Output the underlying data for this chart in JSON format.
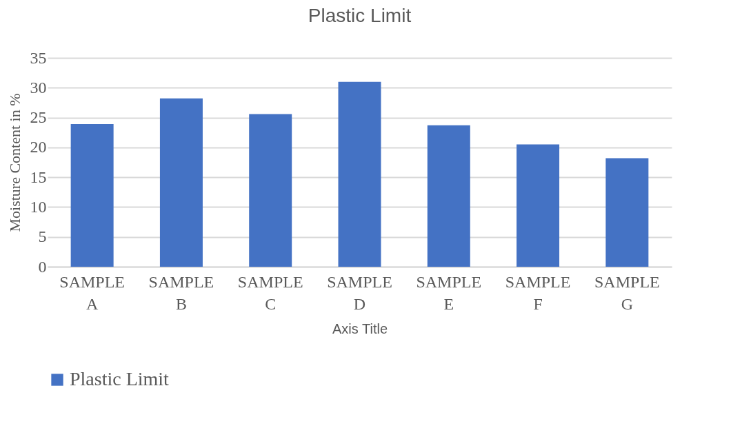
{
  "chart_data": {
    "type": "bar",
    "title": "Plastic Limit",
    "xlabel": "Axis Title",
    "ylabel": "Moisture Content in %",
    "categories": [
      "SAMPLE A",
      "SAMPLE B",
      "SAMPLE C",
      "SAMPLE D",
      "SAMPLE E",
      "SAMPLE F",
      "SAMPLE G"
    ],
    "series": [
      {
        "name": "Plastic Limit",
        "color": "#4472c4",
        "values": [
          23.9,
          28.2,
          25.6,
          31.0,
          23.7,
          20.5,
          18.2
        ]
      }
    ],
    "ylim": [
      0,
      35
    ],
    "yticks": [
      0,
      5,
      10,
      15,
      20,
      25,
      30,
      35
    ],
    "grid": "y",
    "legend": "bottom"
  }
}
